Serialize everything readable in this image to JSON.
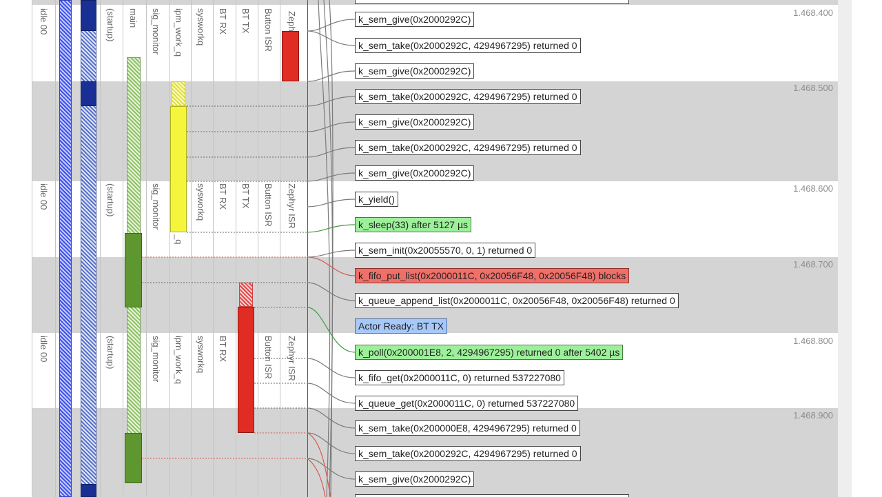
{
  "lanes": {
    "group1": [
      "idle 00",
      "(startup)",
      "main",
      "sig_monitor",
      "ipm_work_q",
      "sysworkq",
      "BT RX",
      "BT TX",
      "Button ISR",
      "Zeph"
    ],
    "group2": [
      "idle 00",
      "(startup)",
      "sig_monitor",
      "_q",
      "sysworkq",
      "BT RX",
      "BT TX",
      "Button ISR",
      "Zephyr ISR"
    ],
    "group3": [
      "idle 00",
      "(startup)",
      "sig_monitor",
      "ipm_work_q",
      "sysworkq",
      "BT RX",
      "Button ISR",
      "Zephyr ISR"
    ]
  },
  "time_markers": [
    "1.468.400",
    "1.468.500",
    "1.468.600",
    "1.468.700",
    "1.468.800",
    "1.468.900"
  ],
  "events": [
    {
      "label": "k_sem_give(0x2000292C)",
      "status": "normal"
    },
    {
      "label": "k_sem_take(0x2000292C, 4294967295) returned 0",
      "status": "normal"
    },
    {
      "label": "k_sem_give(0x2000292C)",
      "status": "normal"
    },
    {
      "label": "k_sem_take(0x2000292C, 4294967295) returned 0",
      "status": "normal"
    },
    {
      "label": "k_sem_give(0x2000292C)",
      "status": "normal"
    },
    {
      "label": "k_sem_take(0x2000292C, 4294967295) returned 0",
      "status": "normal"
    },
    {
      "label": "k_sem_give(0x2000292C)",
      "status": "normal"
    },
    {
      "label": "k_yield()",
      "status": "normal"
    },
    {
      "label": "k_sleep(33) after 5127 µs",
      "status": "ok"
    },
    {
      "label": "k_sem_init(0x20055570, 0, 1) returned 0",
      "status": "normal"
    },
    {
      "label": "k_fifo_put_list(0x2000011C, 0x20056F48, 0x20056F48) blocks",
      "status": "blocked"
    },
    {
      "label": "k_queue_append_list(0x2000011C, 0x20056F48, 0x20056F48) returned 0",
      "status": "normal"
    },
    {
      "label": "Actor Ready: BT TX",
      "status": "info"
    },
    {
      "label": "k_poll(0x200001E8, 2, 4294967295) returned 0 after 5402 µs",
      "status": "ok"
    },
    {
      "label": "k_fifo_get(0x2000011C, 0) returned 537227080",
      "status": "normal"
    },
    {
      "label": "k_queue_get(0x2000011C, 0) returned 537227080",
      "status": "normal"
    },
    {
      "label": "k_sem_take(0x200000E8, 4294967295) returned 0",
      "status": "normal"
    },
    {
      "label": "k_sem_take(0x2000292C, 4294967295) returned 0",
      "status": "normal"
    },
    {
      "label": "k_sem_give(0x2000292C)",
      "status": "normal"
    }
  ],
  "colors": {
    "band": "#d4d4d4",
    "ok_event": "#9df09a",
    "blocked_event": "#f06f69",
    "info_event": "#a7c9fa",
    "connector": "#7a7a7a",
    "connector_green": "#3f9a3f",
    "connector_red": "#d65a4a"
  }
}
